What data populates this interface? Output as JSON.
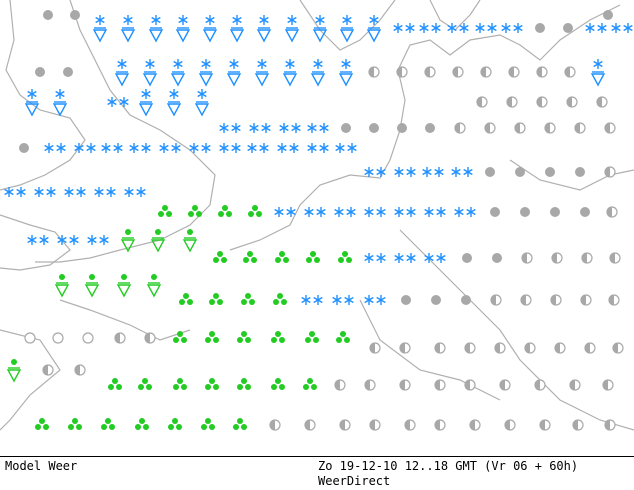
{
  "footer": {
    "model": "Model Weer",
    "run": "Zo 19-12-10 12..18 GMT (Vr 06 + 60h)",
    "source": "WeerDirect"
  }
}
